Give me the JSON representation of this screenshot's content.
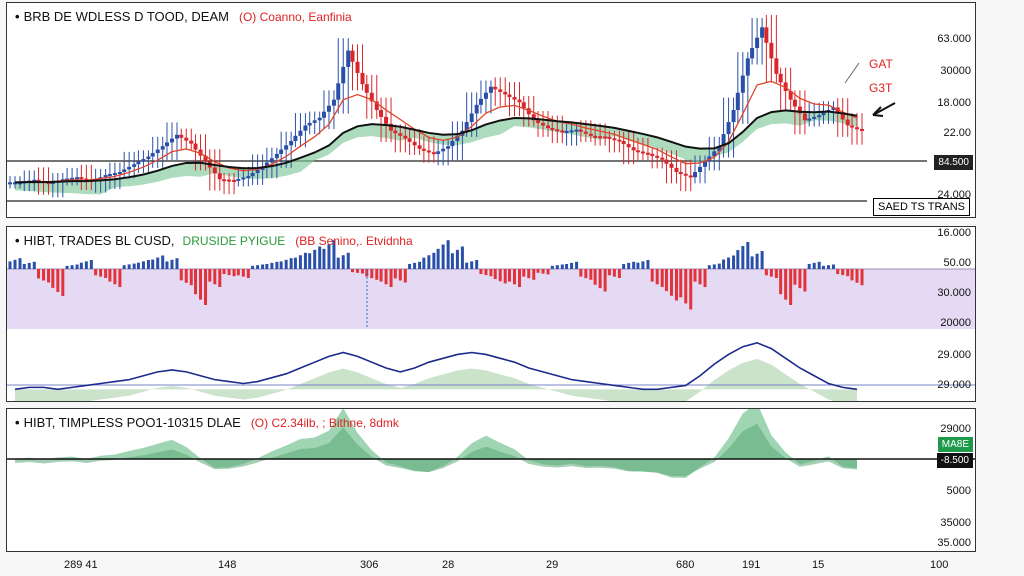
{
  "panels": {
    "p1": {
      "title": "BRB DE WDLESS D TOOD, DEAM",
      "subtitle": "(O) Coanno, Eanfinia"
    },
    "p2": {
      "title": "HIBT, TRADES BL CUSD,",
      "green_label": "DRUSIDE PYIGUE",
      "subtitle": "(BB Senino,. Etvidnha"
    },
    "p3": {
      "title": "HIBT, TIMPLESS POO1-10315 DLAE",
      "subtitle": "(O) C2.34ilb, ; Bithne, 8dmk"
    }
  },
  "annotations": {
    "a1": "GAT",
    "a2": "G3T",
    "boxed": "SAED TS TRANS"
  },
  "tags": {
    "price": "84.500",
    "p3_top": "MA8E",
    "p3_bottom": "-8.500"
  },
  "y_axis": {
    "p1": [
      "63.000",
      "30000",
      "18.000",
      "22.00",
      "24.000"
    ],
    "p2": [
      "16.000",
      "50.00",
      "30.000",
      "20000",
      "29.000",
      "29.000"
    ],
    "p3": [
      "29000",
      "5000",
      "35000",
      "35.000"
    ]
  },
  "x_axis": [
    "289 41",
    "148",
    "306",
    "28",
    "29",
    "680",
    "191",
    "15",
    "100"
  ],
  "colors": {
    "bull": "#2a4fa8",
    "bear": "#d9262b",
    "ema_red": "#e0452a",
    "ma_black": "#111111",
    "cloud": "#7fc79a",
    "hist_up": "#2a4fa8",
    "hist_down": "#e2333a",
    "band": "#e5daf3",
    "line_blue": "#1c2a8c"
  },
  "chart_data": {
    "type": "line",
    "x": [
      0,
      1,
      2,
      3,
      4,
      5,
      6,
      7,
      8,
      9,
      10,
      11,
      12,
      13,
      14,
      15,
      16,
      17,
      18,
      19,
      20,
      21,
      22,
      23,
      24,
      25,
      26,
      27,
      28,
      29,
      30,
      31,
      32,
      33,
      34,
      35,
      36,
      37,
      38,
      39,
      40,
      41,
      42,
      43,
      44,
      45,
      46,
      47,
      48,
      49,
      50,
      51,
      52,
      53,
      54,
      55,
      56,
      57,
      58,
      59
    ],
    "series": [
      {
        "values": [
          24.0,
          24.5,
          23.8,
          24.6,
          25.0,
          24.2,
          25.4,
          26.0,
          27.5,
          29.0,
          31.0,
          33.2,
          31.5,
          28.0,
          24.6,
          24.4,
          25.2,
          27.0,
          29.5,
          32.0,
          35.0,
          36.5,
          40.0,
          49.5,
          43.0,
          38.0,
          34.0,
          32.5,
          30.5,
          29.5,
          31.0,
          34.0,
          39.0,
          42.5,
          41.0,
          39.5,
          36.0,
          34.5,
          33.8,
          34.2,
          33.0,
          32.8,
          32.0,
          30.2,
          29.5,
          28.4,
          26.0,
          25.0,
          28.0,
          31.0,
          38.0,
          48.0,
          54.0,
          45.0,
          40.0,
          36.0,
          37.0,
          38.5,
          35.0,
          34.0
        ]
      }
    ],
    "volume": [
      1.2,
      0.8,
      -1.5,
      -3.0,
      0.5,
      1.0,
      -1.0,
      -2.0,
      0.6,
      1.0,
      1.5,
      1.2,
      -1.8,
      -4.0,
      -2.0,
      -0.8,
      -1.0,
      0.5,
      0.8,
      1.2,
      1.8,
      2.5,
      3.2,
      1.8,
      -0.5,
      -1.2,
      -2.0,
      -1.5,
      0.8,
      1.8,
      3.2,
      2.5,
      1.0,
      -0.8,
      -1.6,
      -2.0,
      -1.2,
      -0.6,
      0.5,
      0.8,
      -1.2,
      -2.5,
      -1.0,
      0.8,
      1.0,
      -2.0,
      -3.5,
      -4.5,
      -2.0,
      0.6,
      1.5,
      3.0,
      2.0,
      -1.0,
      -4.0,
      -2.5,
      0.8,
      0.5,
      -0.8,
      -1.8
    ],
    "oscillator": [
      28.5,
      28.6,
      28.6,
      28.5,
      28.6,
      28.7,
      28.8,
      28.9,
      29.0,
      29.2,
      29.4,
      29.5,
      29.4,
      29.2,
      29.0,
      28.9,
      28.8,
      28.9,
      29.1,
      29.3,
      29.6,
      29.9,
      30.2,
      30.4,
      30.2,
      29.9,
      29.6,
      29.4,
      29.6,
      29.9,
      30.1,
      30.3,
      30.4,
      30.3,
      30.1,
      29.9,
      29.6,
      29.4,
      29.2,
      29.0,
      28.9,
      28.8,
      28.7,
      28.6,
      28.5,
      28.5,
      28.6,
      28.7,
      29.2,
      29.8,
      30.3,
      30.7,
      30.9,
      30.6,
      30.1,
      29.6,
      29.2,
      28.8,
      28.6,
      28.5
    ],
    "ylim_price": [
      20,
      56
    ],
    "ylim_osc": [
      28,
      31.2
    ]
  }
}
